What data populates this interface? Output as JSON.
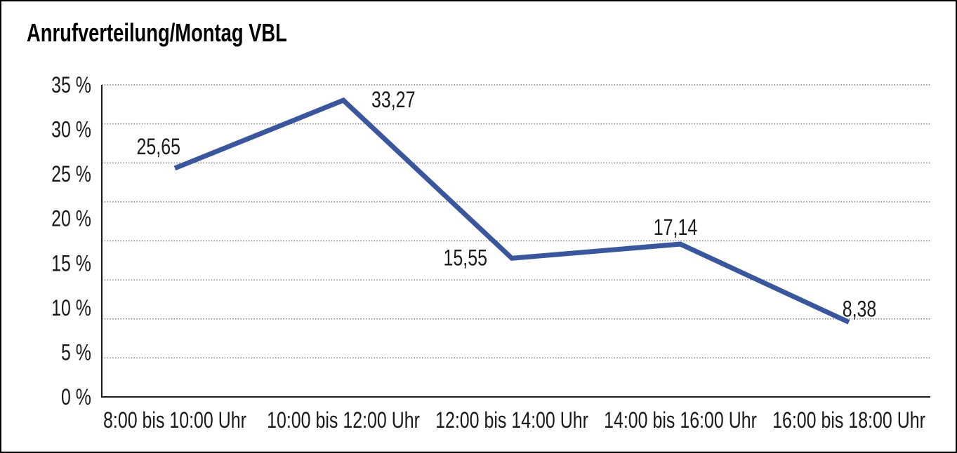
{
  "chart_data": {
    "type": "line",
    "title": "Anrufverteilung/Montag VBL",
    "categories": [
      "8:00 bis 10:00 Uhr",
      "10:00 bis 12:00 Uhr",
      "12:00 bis 14:00 Uhr",
      "14:00 bis 16:00 Uhr",
      "16:00 bis 18:00 Uhr"
    ],
    "values": [
      25.65,
      33.27,
      15.55,
      17.14,
      8.38
    ],
    "point_labels": [
      "25,65",
      "33,27",
      "15,55",
      "17,14",
      "8,38"
    ],
    "y_ticks": [
      {
        "value": 35,
        "label": "35 %"
      },
      {
        "value": 30,
        "label": "30 %"
      },
      {
        "value": 25,
        "label": "25 %"
      },
      {
        "value": 20,
        "label": "20 %"
      },
      {
        "value": 15,
        "label": "15 %"
      },
      {
        "value": 10,
        "label": "10 %"
      },
      {
        "value": 5,
        "label": "5 %"
      },
      {
        "value": 0,
        "label": "0 %"
      }
    ],
    "ylim": [
      0,
      35
    ],
    "xlabel": "",
    "ylabel": "",
    "grid": "horizontal-dotted",
    "gridline_intervals": 8,
    "legend": "none",
    "colors": {
      "line": "#3A569D",
      "axis": "#1A1A1A",
      "grid": "#777777",
      "text": "#1A1A1A",
      "background": "#FFFFFF",
      "border": "#000000"
    }
  }
}
